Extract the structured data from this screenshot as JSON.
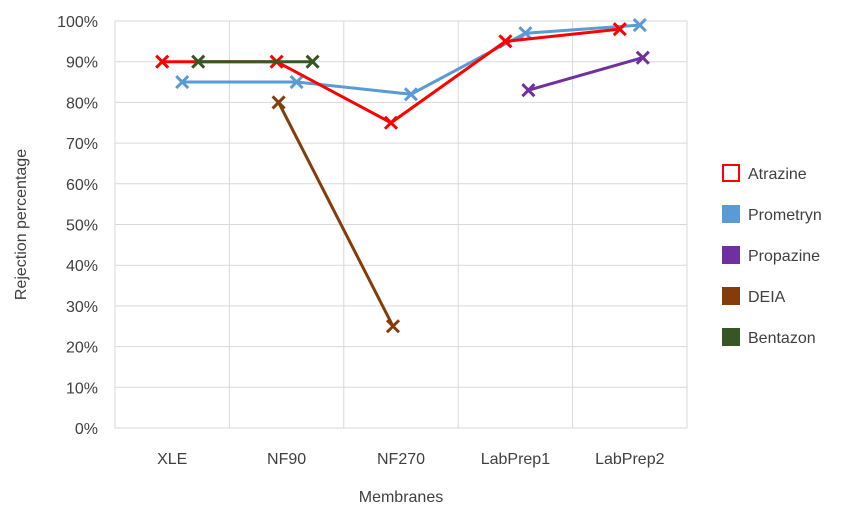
{
  "chart_data": {
    "type": "line",
    "title": "",
    "xlabel": "Membranes",
    "ylabel": "Rejection percentage",
    "categories": [
      "XLE",
      "NF90",
      "NF270",
      "LabPrep1",
      "LabPrep2"
    ],
    "ylim": [
      0,
      100
    ],
    "yticks": [
      "0%",
      "10%",
      "20%",
      "30%",
      "40%",
      "50%",
      "60%",
      "70%",
      "80%",
      "90%",
      "100%"
    ],
    "grid": "vertical and horizontal",
    "legend_position": "right",
    "series": [
      {
        "name": "Atrazine",
        "color": "#ff0000",
        "points": [
          {
            "x": "XLE",
            "y": 90
          },
          {
            "x": "NF90",
            "y": 90
          },
          {
            "x": "NF270",
            "y": 75
          },
          {
            "x": "LabPrep1",
            "y": 95
          },
          {
            "x": "LabPrep2",
            "y": 98
          }
        ]
      },
      {
        "name": "Prometryn",
        "color": "#5b9bd5",
        "points": [
          {
            "x": "XLE",
            "y": 85
          },
          {
            "x": "NF90",
            "y": 85
          },
          {
            "x": "NF270",
            "y": 82
          },
          {
            "x": "LabPrep1",
            "y": 97
          },
          {
            "x": "LabPrep2",
            "y": 99
          }
        ]
      },
      {
        "name": "Propazine",
        "color": "#7030a0",
        "points": [
          {
            "x": "LabPrep1",
            "y": 83
          },
          {
            "x": "LabPrep2",
            "y": 91
          }
        ]
      },
      {
        "name": "DEIA",
        "color": "#843c0c",
        "points": [
          {
            "x": "NF90",
            "y": 80
          },
          {
            "x": "NF270",
            "y": 25
          }
        ]
      },
      {
        "name": "Bentazon",
        "color": "#375623",
        "points": [
          {
            "x": "XLE",
            "y": 90
          },
          {
            "x": "NF90",
            "y": 90
          }
        ]
      }
    ]
  }
}
